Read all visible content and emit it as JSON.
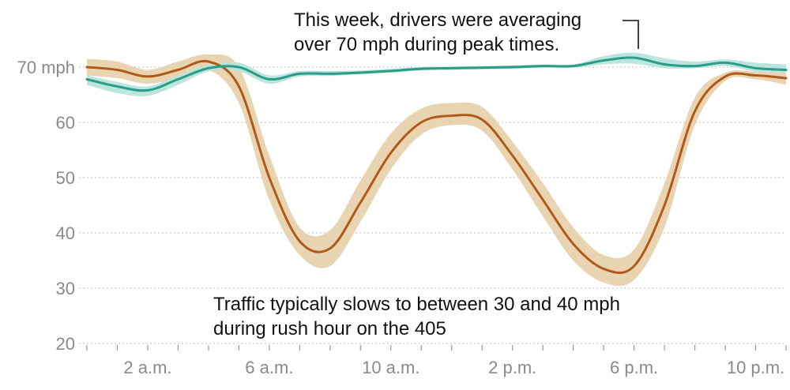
{
  "chart_data": {
    "type": "line",
    "title": "",
    "xlabel": "",
    "ylabel": "",
    "ylim": [
      20,
      72
    ],
    "xlim": [
      0,
      23
    ],
    "y_ticks": [
      {
        "value": 70,
        "label": "70 mph"
      },
      {
        "value": 60,
        "label": "60"
      },
      {
        "value": 50,
        "label": "50"
      },
      {
        "value": 40,
        "label": "40"
      },
      {
        "value": 30,
        "label": "30"
      },
      {
        "value": 20,
        "label": "20"
      }
    ],
    "x_ticks": [
      {
        "value": 2,
        "label": "2 a.m."
      },
      {
        "value": 6,
        "label": "6 a.m."
      },
      {
        "value": 10,
        "label": "10 a.m."
      },
      {
        "value": 14,
        "label": "2 p.m."
      },
      {
        "value": 18,
        "label": "6 p.m."
      },
      {
        "value": 22,
        "label": "10 p.m."
      }
    ],
    "grid": "horizontal dotted",
    "series": [
      {
        "key": "typical",
        "color": "#b05a1a",
        "band_color": "#e8d2ae",
        "x": [
          0,
          1,
          2,
          3,
          4,
          5,
          6,
          7,
          8,
          9,
          10,
          11,
          12,
          13,
          14,
          15,
          16,
          17,
          18,
          19,
          20,
          21,
          22,
          23
        ],
        "y": [
          70,
          69.5,
          68.3,
          69.5,
          71,
          66.5,
          50,
          38.5,
          37.2,
          45.5,
          54.5,
          60,
          61.2,
          60.5,
          54,
          46,
          38,
          33.5,
          34,
          45,
          62,
          68.3,
          68.5,
          68
        ],
        "band_low": [
          68.5,
          68,
          67,
          68,
          69.5,
          63.5,
          46,
          36,
          34,
          42,
          51.5,
          57.8,
          59.5,
          58.5,
          51.5,
          43,
          35,
          31,
          31.5,
          41,
          59.5,
          67.5,
          67.8,
          66.8
        ],
        "band_high": [
          71.5,
          71,
          69.5,
          71,
          72.3,
          70,
          54,
          41,
          40.5,
          49.5,
          58,
          62.5,
          63.5,
          62.8,
          56.5,
          49,
          41,
          36,
          37,
          49,
          64.5,
          69,
          69.2,
          69
        ]
      },
      {
        "key": "this-week",
        "color": "#2a9d86",
        "band_color": "#b8e4dc",
        "x": [
          0,
          1,
          2,
          3,
          4,
          5,
          6,
          7,
          8,
          9,
          10,
          11,
          12,
          13,
          14,
          15,
          16,
          17,
          18,
          19,
          20,
          21,
          22,
          23
        ],
        "y": [
          67.8,
          66.5,
          65.8,
          67.8,
          69.8,
          70,
          67.8,
          68.8,
          68.8,
          69,
          69.3,
          69.7,
          69.8,
          69.9,
          70,
          70.2,
          70.2,
          71.2,
          71.7,
          70.5,
          70.2,
          70.8,
          69.8,
          69.5
        ],
        "band_low": [
          66.8,
          65.3,
          64.8,
          66.8,
          69.2,
          69.2,
          67,
          68.3,
          68.4,
          68.7,
          69,
          69.4,
          69.5,
          69.6,
          69.7,
          69.9,
          69.9,
          70.5,
          70.6,
          69.8,
          69.8,
          70.2,
          69.2,
          69
        ],
        "band_high": [
          68.5,
          67.3,
          66.5,
          68.5,
          70.4,
          70.8,
          68.5,
          69.3,
          69.3,
          69.4,
          69.7,
          70,
          70.1,
          70.2,
          70.3,
          70.5,
          70.5,
          72,
          72.6,
          71.6,
          71,
          71.4,
          70.8,
          70.5
        ]
      }
    ],
    "annotations": [
      {
        "key": "this-week-note",
        "lines": [
          "This week, drivers were averaging",
          "over 70 mph during peak times."
        ],
        "color": "#111111"
      },
      {
        "key": "rush-hour-note",
        "lines": [
          "Traffic typically slows to between 30 and 40 mph",
          "during rush hour on the 405"
        ],
        "color": "#111111"
      }
    ]
  }
}
